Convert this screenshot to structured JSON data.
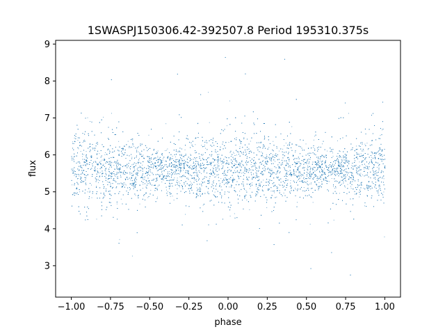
{
  "chart_data": {
    "type": "scatter",
    "title": "1SWASPJ150306.42-392507.8 Period 195310.375s",
    "xlabel": "phase",
    "ylabel": "flux",
    "xlim": [
      -1.1,
      1.1
    ],
    "ylim": [
      2.15,
      9.1
    ],
    "x_ticks": [
      -1.0,
      -0.75,
      -0.5,
      -0.25,
      0.0,
      0.25,
      0.5,
      0.75,
      1.0
    ],
    "x_tick_labels": [
      "−1.00",
      "−0.75",
      "−0.50",
      "−0.25",
      "0.00",
      "0.25",
      "0.50",
      "0.75",
      "1.00"
    ],
    "y_ticks": [
      3,
      4,
      5,
      6,
      7,
      8,
      9
    ],
    "y_tick_labels": [
      "3",
      "4",
      "5",
      "6",
      "7",
      "8",
      "9"
    ],
    "grid": false,
    "legend": "none",
    "series": [
      {
        "color": "#1f77b4",
        "x_range": [
          -1.0,
          1.0
        ],
        "y_center": 5.6,
        "y_core_range": [
          4.6,
          6.6
        ],
        "y_full_range": [
          2.45,
          8.75
        ],
        "note_repeating_pattern_period": 1.0
      }
    ]
  }
}
